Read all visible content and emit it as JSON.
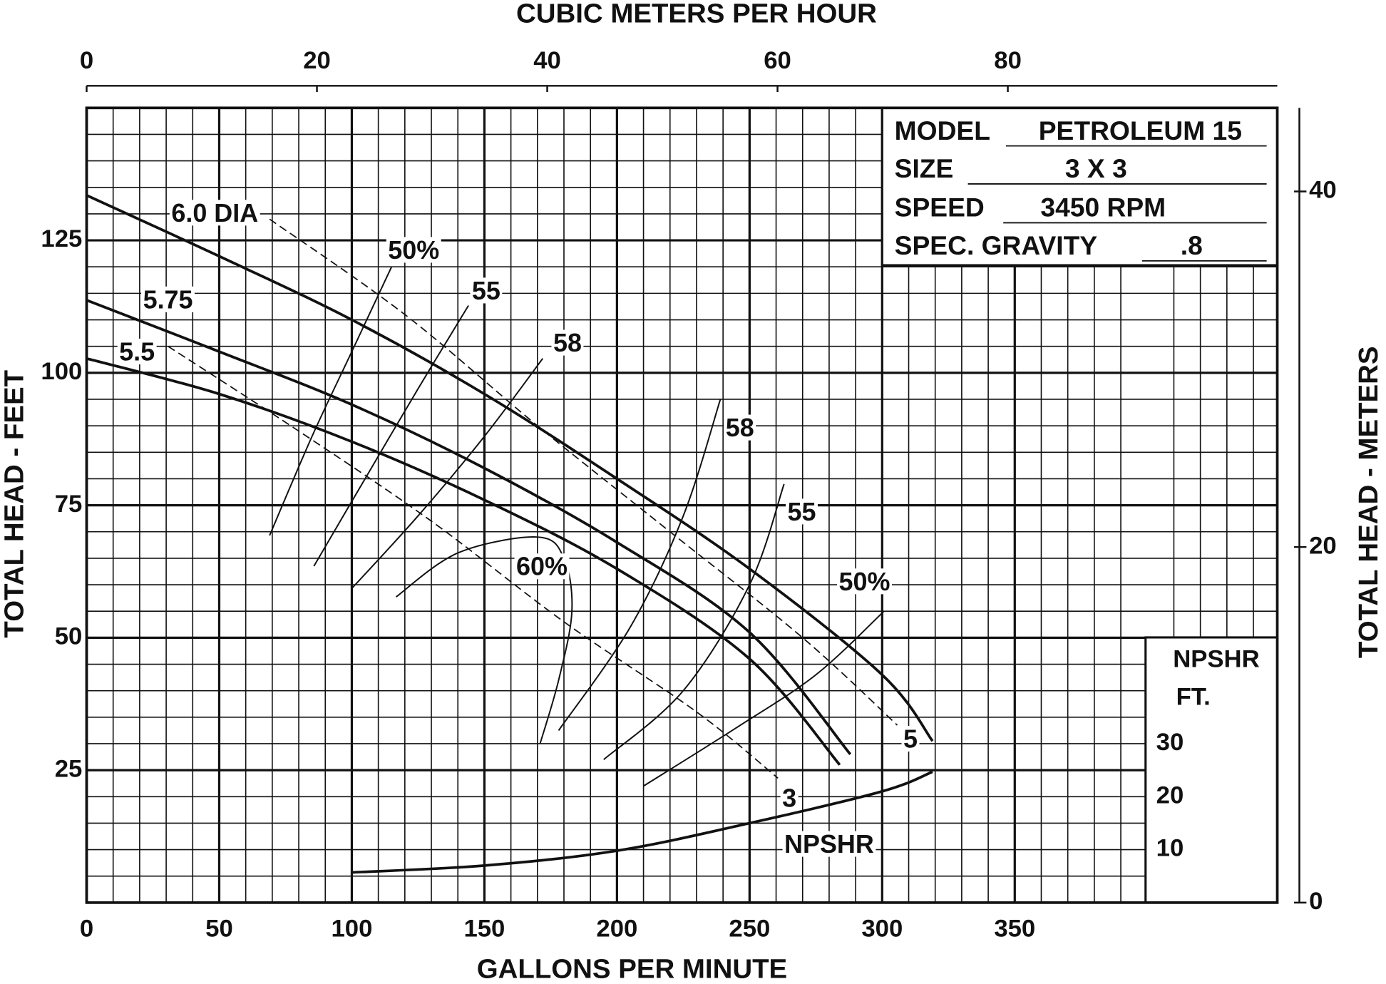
{
  "chart_data": {
    "type": "line",
    "x_title": "GALLONS PER MINUTE",
    "y_title": "TOTAL HEAD - FEET",
    "x2_title": "CUBIC METERS PER HOUR",
    "y2_title": "TOTAL HEAD - METERS",
    "xlim": [
      0,
      449
    ],
    "xticks": [
      0,
      50,
      100,
      150,
      200,
      250,
      300,
      350
    ],
    "ylim": [
      0,
      150
    ],
    "yticks": [
      25,
      50,
      75,
      100,
      125
    ],
    "x2lim": [
      0,
      103.4
    ],
    "x2ticks": [
      0,
      20,
      40,
      60,
      80
    ],
    "y2lim": [
      0,
      44.7
    ],
    "y2ticks": [
      0,
      20,
      40
    ],
    "grid": true,
    "minor_grid": {
      "x": 5,
      "y": 5
    },
    "npshr_title": "NPSHR",
    "npshr_unit": "FT.",
    "npshr_ticks": [
      10,
      20,
      30
    ],
    "info_box": [
      {
        "label": "MODEL",
        "value": "PETROLEUM 15"
      },
      {
        "label": "SIZE",
        "value": "3 X 3"
      },
      {
        "label": "SPEED",
        "value": "3450 RPM"
      },
      {
        "label": "SPEC. GRAVITY",
        "value": ".8"
      }
    ],
    "series": [
      {
        "name": "6.0 DIA",
        "kind": "head",
        "x": [
          0,
          50,
          100,
          150,
          200,
          250,
          300,
          319
        ],
        "values": [
          133.5,
          122,
          110,
          96,
          80,
          63,
          43,
          30.5
        ]
      },
      {
        "name": "5.75",
        "kind": "head",
        "x": [
          0,
          50,
          100,
          150,
          200,
          250,
          288
        ],
        "values": [
          113.7,
          104,
          94,
          82,
          68,
          51,
          28
        ]
      },
      {
        "name": "5.5",
        "kind": "head",
        "x": [
          0,
          50,
          100,
          150,
          200,
          250,
          284
        ],
        "values": [
          102.7,
          96,
          87,
          76,
          63,
          46,
          26
        ]
      },
      {
        "name": "50%",
        "kind": "efficiency",
        "x": [
          69,
          85,
          100,
          115
        ],
        "values": [
          69.3,
          88,
          104,
          120
        ]
      },
      {
        "name": "55",
        "kind": "efficiency",
        "x": [
          85.7,
          105,
          125,
          144
        ],
        "values": [
          63.5,
          80,
          97,
          112.7
        ]
      },
      {
        "name": "58",
        "kind": "efficiency",
        "x": [
          100,
          125,
          150,
          172
        ],
        "values": [
          59.3,
          73,
          88,
          102.7
        ]
      },
      {
        "name": "60%",
        "kind": "efficiency",
        "x": [
          116.7,
          140,
          170,
          180,
          183,
          178,
          171
        ],
        "values": [
          57.7,
          66,
          69,
          65,
          55,
          42,
          30
        ]
      },
      {
        "name": "58",
        "kind": "efficiency",
        "x": [
          178,
          205,
          225,
          239
        ],
        "values": [
          32.5,
          52,
          73,
          95
        ]
      },
      {
        "name": "55",
        "kind": "efficiency",
        "x": [
          195,
          225,
          250,
          263
        ],
        "values": [
          27,
          40,
          60,
          79
        ]
      },
      {
        "name": "50%",
        "kind": "efficiency",
        "x": [
          210,
          245,
          275,
          300.7
        ],
        "values": [
          22,
          33,
          43,
          55
        ]
      },
      {
        "name": "5",
        "kind": "hp",
        "x": [
          69,
          120,
          170,
          220,
          270,
          305.7
        ],
        "values": [
          129,
          111,
          90,
          70,
          50,
          33.5
        ]
      },
      {
        "name": "3",
        "kind": "hp",
        "x": [
          30.7,
          80,
          130,
          180,
          230,
          260.7
        ],
        "values": [
          105,
          89,
          72,
          53,
          36,
          23.5
        ]
      },
      {
        "name": "NPSHR",
        "kind": "npshr",
        "x": [
          100,
          150,
          200,
          250,
          300,
          319
        ],
        "values": [
          5.7,
          7,
          9.8,
          15,
          21,
          24.7
        ]
      }
    ]
  }
}
